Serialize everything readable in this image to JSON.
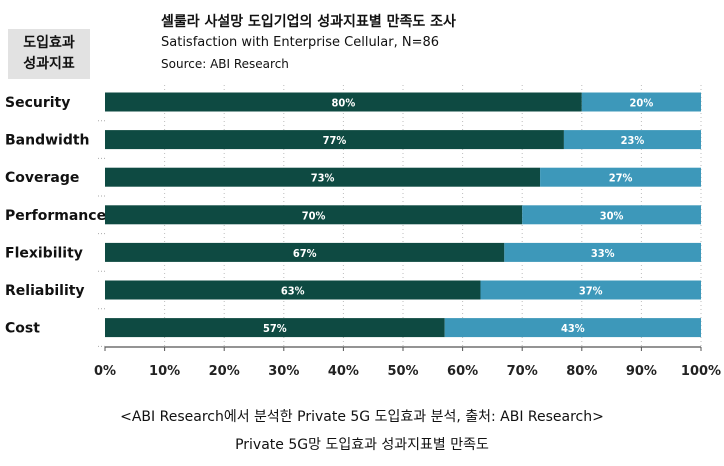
{
  "side_label": {
    "line1": "도입효과",
    "line2": "성과지표"
  },
  "chart_data": {
    "type": "bar",
    "orientation": "horizontal",
    "stacked": true,
    "title": "셀룰라 사설망 도입기업의 성과지표별 만족도 조사",
    "subtitle": "Satisfaction with Enterprise Cellular, N=86",
    "source": "Source: ABI Research",
    "categories": [
      "Security",
      "Bandwidth",
      "Coverage",
      "Performance",
      "Flexibility",
      "Reliability",
      "Cost"
    ],
    "series": [
      {
        "values": [
          80,
          77,
          73,
          70,
          67,
          63,
          57
        ],
        "color": "#0e4a42"
      },
      {
        "values": [
          20,
          23,
          27,
          30,
          33,
          37,
          43
        ],
        "color": "#3d98ba"
      }
    ],
    "xlim": [
      0,
      100
    ],
    "xticks": [
      "0%",
      "10%",
      "20%",
      "30%",
      "40%",
      "50%",
      "60%",
      "70%",
      "80%",
      "90%",
      "100%"
    ],
    "value_suffix": "%",
    "grid": "vertical-dotted",
    "xlabel": "",
    "ylabel": ""
  },
  "captions": {
    "line1": "<ABI Research에서 분석한 Private 5G 도입효과 분석, 출처: ABI Research>",
    "line2": "Private 5G망 도입효과 성과지표별 만족도"
  }
}
